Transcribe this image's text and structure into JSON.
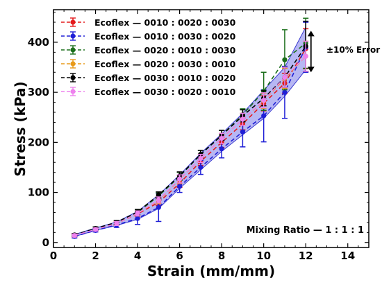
{
  "chart_data": {
    "type": "line",
    "xlabel": "Strain (mm/mm)",
    "ylabel": "Stress (kPa)",
    "xlim": [
      0,
      15
    ],
    "ylim": [
      -10,
      465
    ],
    "xticks": [
      0,
      2,
      4,
      6,
      8,
      10,
      12,
      14
    ],
    "yticks": [
      0,
      100,
      200,
      300,
      400
    ],
    "x": [
      1,
      2,
      3,
      4,
      5,
      6,
      7,
      8,
      9,
      10,
      11,
      12
    ],
    "series": [
      {
        "name": "Ecoflex — 0010 : 0020 : 0030",
        "color": "#e41a1c",
        "values": [
          14,
          26,
          38,
          57,
          80,
          118,
          162,
          200,
          237,
          278,
          318,
          387
        ],
        "errors": [
          3,
          3,
          4,
          5,
          6,
          8,
          8,
          10,
          12,
          15,
          20,
          40
        ]
      },
      {
        "name": "Ecoflex — 0010 : 0030 : 0020",
        "color": "#1f1fd6",
        "values": [
          12,
          24,
          35,
          48,
          70,
          112,
          150,
          187,
          221,
          253,
          300,
          390
        ],
        "errors": [
          3,
          3,
          5,
          12,
          28,
          12,
          14,
          18,
          30,
          52,
          52,
          50
        ]
      },
      {
        "name": "Ecoflex — 0020 : 0010 : 0030",
        "color": "#1a6e1a",
        "values": [
          15,
          28,
          40,
          60,
          93,
          132,
          176,
          214,
          255,
          302,
          365,
          398
        ],
        "errors": [
          3,
          3,
          4,
          5,
          6,
          8,
          8,
          10,
          12,
          38,
          60,
          50
        ]
      },
      {
        "name": "Ecoflex — 0020 : 0030 : 0010",
        "color": "#e89a1a",
        "values": [
          14,
          27,
          38,
          58,
          84,
          126,
          168,
          208,
          246,
          283,
          328,
          372
        ],
        "errors": [
          3,
          3,
          4,
          5,
          6,
          8,
          8,
          10,
          12,
          15,
          20,
          30
        ]
      },
      {
        "name": "Ecoflex — 0030 : 0010 : 0020",
        "color": "#000000",
        "values": [
          15,
          28,
          40,
          61,
          95,
          133,
          176,
          214,
          253,
          288,
          330,
          392
        ],
        "errors": [
          3,
          3,
          4,
          5,
          6,
          8,
          8,
          10,
          12,
          15,
          20,
          50
        ]
      },
      {
        "name": "Ecoflex — 0030 : 0020 : 0010",
        "color": "#ee82ee",
        "values": [
          14,
          26,
          38,
          58,
          85,
          127,
          168,
          208,
          246,
          284,
          330,
          372
        ],
        "errors": [
          3,
          3,
          4,
          5,
          6,
          8,
          8,
          10,
          12,
          15,
          20,
          30
        ]
      }
    ],
    "band": {
      "color": "#7b7bea",
      "lower": [
        12,
        24,
        34,
        46,
        68,
        108,
        145,
        182,
        215,
        248,
        292,
        345
      ],
      "upper": [
        16,
        29,
        41,
        62,
        95,
        135,
        178,
        217,
        258,
        304,
        350,
        430
      ]
    },
    "annotations": {
      "error_label": "±10% Error",
      "ratio_label": "Mixing Ratio — 1 : 1 : 1",
      "error_arrow": {
        "x": 12.25,
        "y_from": 340,
        "y_to": 423
      }
    },
    "legend_position": "top-left",
    "grid": false
  }
}
